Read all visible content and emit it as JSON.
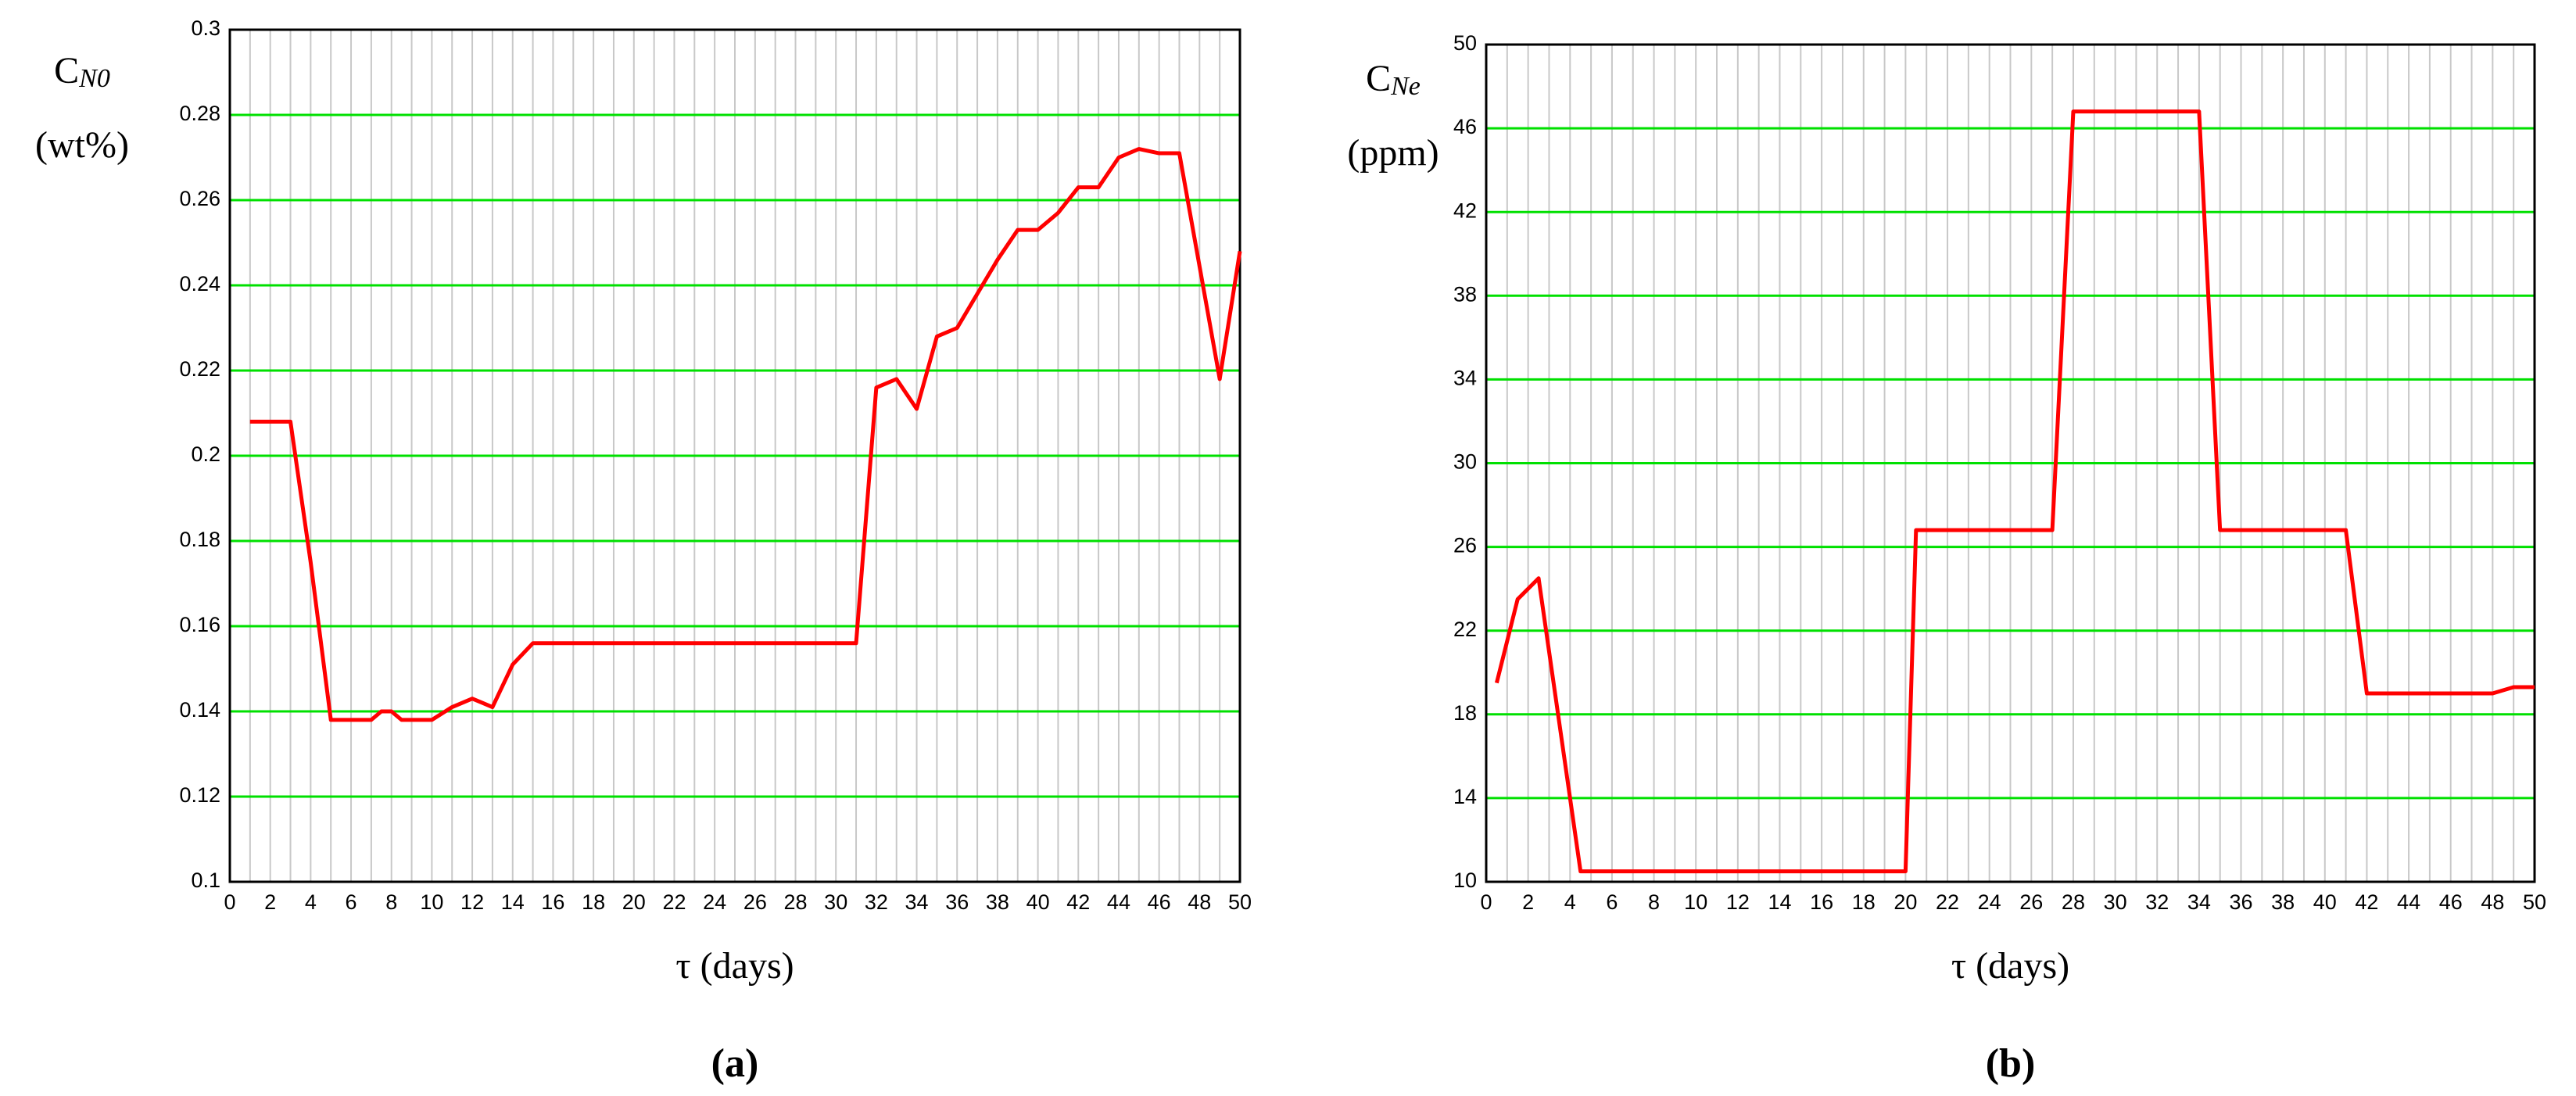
{
  "chart_data": [
    {
      "type": "line",
      "ylabel": "C",
      "ylabel_sub": "N0",
      "ylabel_unit": "(wt%)",
      "xlabel": "τ (days)",
      "panel": "(a)",
      "grid": true,
      "grid_color": "#00e000",
      "minor_grid_color": "#c8c8c8",
      "xlim": [
        0,
        50
      ],
      "xticks": [
        0,
        2,
        4,
        6,
        8,
        10,
        12,
        14,
        16,
        18,
        20,
        22,
        24,
        26,
        28,
        30,
        32,
        34,
        36,
        38,
        40,
        42,
        44,
        46,
        48,
        50
      ],
      "xminorticks": [
        1,
        3,
        5,
        7,
        9,
        11,
        13,
        15,
        17,
        19,
        21,
        23,
        25,
        27,
        29,
        31,
        33,
        35,
        37,
        39,
        41,
        43,
        45,
        47,
        49
      ],
      "ylim": [
        0.1,
        0.3
      ],
      "yticks": [
        0.1,
        0.12,
        0.14,
        0.16,
        0.18,
        0.2,
        0.22,
        0.24,
        0.26,
        0.28,
        0.3
      ],
      "x": [
        1,
        3,
        4,
        5,
        7,
        7.5,
        8,
        8.5,
        10,
        11,
        12,
        12.5,
        13,
        14,
        15,
        31,
        32,
        33,
        34,
        35,
        36,
        37,
        38,
        39,
        40,
        41,
        42,
        43,
        44,
        45,
        46,
        47,
        49,
        50
      ],
      "series": [
        {
          "color": "#ff0000",
          "values": [
            0.208,
            0.208,
            0.175,
            0.138,
            0.138,
            0.14,
            0.14,
            0.138,
            0.138,
            0.141,
            0.143,
            0.142,
            0.141,
            0.151,
            0.156,
            0.156,
            0.216,
            0.218,
            0.211,
            0.228,
            0.23,
            0.238,
            0.246,
            0.253,
            0.253,
            0.257,
            0.263,
            0.263,
            0.27,
            0.272,
            0.271,
            0.271,
            0.218,
            0.248
          ]
        }
      ]
    },
    {
      "type": "line",
      "ylabel": "C",
      "ylabel_sub": "Ne",
      "ylabel_unit": "(ppm)",
      "xlabel": "τ (days)",
      "panel": "(b)",
      "grid": true,
      "grid_color": "#00e000",
      "minor_grid_color": "#c8c8c8",
      "xlim": [
        0,
        50
      ],
      "xticks": [
        0,
        2,
        4,
        6,
        8,
        10,
        12,
        14,
        16,
        18,
        20,
        22,
        24,
        26,
        28,
        30,
        32,
        34,
        36,
        38,
        40,
        42,
        44,
        46,
        48,
        50
      ],
      "xminorticks": [
        1,
        3,
        5,
        7,
        9,
        11,
        13,
        15,
        17,
        19,
        21,
        23,
        25,
        27,
        29,
        31,
        33,
        35,
        37,
        39,
        41,
        43,
        45,
        47,
        49
      ],
      "ylim": [
        10,
        50
      ],
      "yticks": [
        10,
        14,
        18,
        22,
        26,
        30,
        34,
        38,
        42,
        46,
        50
      ],
      "x": [
        0.5,
        1.5,
        2.5,
        3.5,
        4.5,
        20,
        20.5,
        27,
        28,
        34,
        35,
        41,
        42,
        48,
        49,
        50
      ],
      "series": [
        {
          "color": "#ff0000",
          "values": [
            19.5,
            23.5,
            24.5,
            17.5,
            10.5,
            10.5,
            26.8,
            26.8,
            46.8,
            46.8,
            26.8,
            26.8,
            19,
            19,
            19.3,
            19.3
          ]
        }
      ]
    }
  ]
}
